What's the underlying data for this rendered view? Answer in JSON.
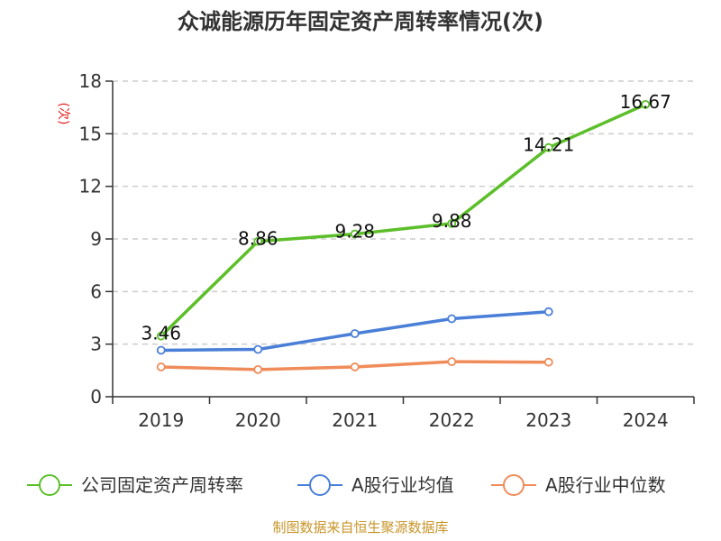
{
  "title": "众诚能源历年固定资产周转率情况(次)",
  "source": "制图数据来自恒生聚源数据库",
  "colors": {
    "company": "#5cbf2a",
    "avg": "#4a7fd8",
    "median": "#f08c5a"
  },
  "chart_data": {
    "type": "line",
    "title": "众诚能源历年固定资产周转率情况(次)",
    "ylabel": "(次)",
    "xlabel": "",
    "categories": [
      "2019",
      "2020",
      "2021",
      "2022",
      "2023",
      "2024"
    ],
    "ylim": [
      0,
      18
    ],
    "yticks": [
      0,
      3,
      6,
      9,
      12,
      15,
      18
    ],
    "grid": true,
    "legend_position": "bottom",
    "series": [
      {
        "name": "公司固定资产周转率",
        "color": "#5cbf2a",
        "show_labels": true,
        "labels": [
          "3.46",
          "8.86",
          "9.28",
          "9.88",
          "14.21",
          "16.67"
        ],
        "values": [
          3.46,
          8.86,
          9.28,
          9.88,
          14.21,
          16.67
        ]
      },
      {
        "name": "A股行业均值",
        "color": "#4a7fd8",
        "show_labels": false,
        "values": [
          2.65,
          2.7,
          3.6,
          4.45,
          4.85,
          null
        ]
      },
      {
        "name": "A股行业中位数",
        "color": "#f08c5a",
        "show_labels": false,
        "values": [
          1.7,
          1.55,
          1.7,
          2.0,
          1.97,
          null
        ]
      }
    ]
  }
}
